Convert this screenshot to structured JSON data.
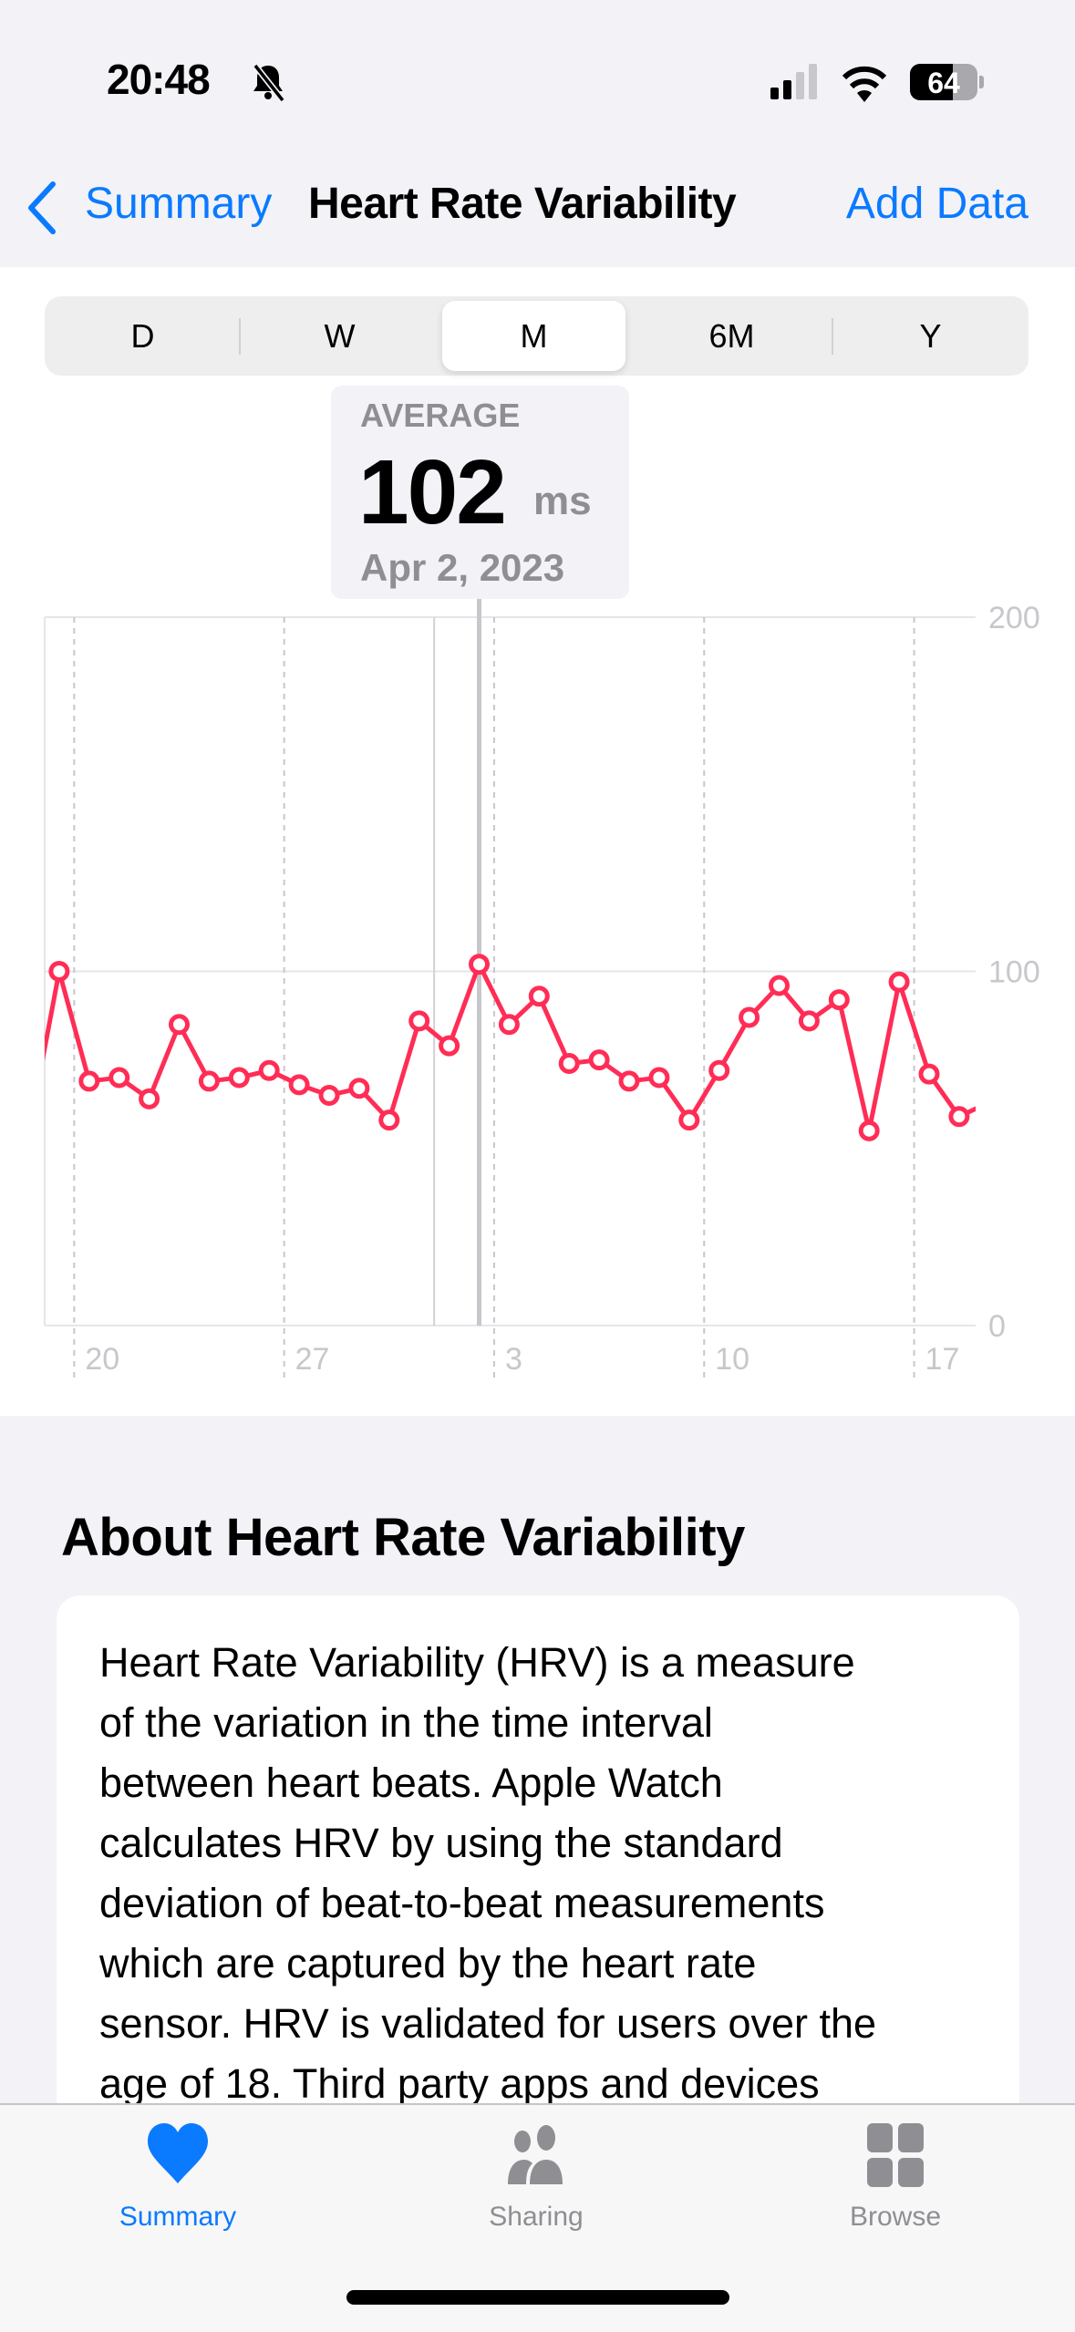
{
  "status_bar": {
    "time": "20:48",
    "battery": "64",
    "icons": [
      "bell-slash-icon",
      "signal-icon",
      "wifi-icon",
      "battery-icon"
    ]
  },
  "nav": {
    "back_label": "Summary",
    "title": "Heart Rate Variability",
    "action_label": "Add Data"
  },
  "segments": {
    "items": [
      "D",
      "W",
      "M",
      "6M",
      "Y"
    ],
    "selected": "M"
  },
  "callout": {
    "label": "AVERAGE",
    "value": "102",
    "unit": "ms",
    "date": "Apr 2, 2023"
  },
  "colors": {
    "accent": "#0a7aff",
    "series": "#ff2d55",
    "grid": "#e5e5ea",
    "axis_text": "#c7c7cc"
  },
  "chart_data": {
    "type": "line",
    "title": "",
    "xlabel": "",
    "ylabel": "ms",
    "ylim": [
      0,
      200
    ],
    "y_ticks": [
      "200",
      "100",
      "0"
    ],
    "x_tick_labels": [
      "20",
      "27",
      "3",
      "10",
      "17"
    ],
    "x": [
      "Mar 18",
      "Mar 19",
      "Mar 20",
      "Mar 21",
      "Mar 22",
      "Mar 23",
      "Mar 24",
      "Mar 25",
      "Mar 26",
      "Mar 27",
      "Mar 28",
      "Mar 29",
      "Mar 30",
      "Mar 31",
      "Apr 1",
      "Apr 2",
      "Apr 3",
      "Apr 4",
      "Apr 5",
      "Apr 6",
      "Apr 7",
      "Apr 8",
      "Apr 9",
      "Apr 10",
      "Apr 11",
      "Apr 12",
      "Apr 13",
      "Apr 14",
      "Apr 15",
      "Apr 16",
      "Apr 17",
      "Apr 18",
      "Apr 19"
    ],
    "values": [
      55,
      100,
      69,
      70,
      64,
      85,
      69,
      70,
      72,
      68,
      65,
      67,
      58,
      86,
      79,
      102,
      85,
      93,
      74,
      75,
      69,
      70,
      58,
      72,
      87,
      96,
      86,
      92,
      55,
      97,
      71,
      59,
      63
    ],
    "selected": "Apr 2",
    "grid": true
  },
  "about": {
    "heading": "About Heart Rate Variability",
    "lines": [
      "Heart Rate Variability (HRV) is a measure",
      "of the variation in the time interval",
      "between heart beats. Apple Watch",
      "calculates HRV by using the standard",
      "deviation of beat-to-beat measurements",
      "which are captured by the heart rate",
      "sensor. HRV is validated for users over the",
      "age of 18. Third party apps and devices"
    ]
  },
  "tabbar": {
    "items": [
      {
        "label": "Summary"
      },
      {
        "label": "Sharing"
      },
      {
        "label": "Browse"
      }
    ]
  }
}
